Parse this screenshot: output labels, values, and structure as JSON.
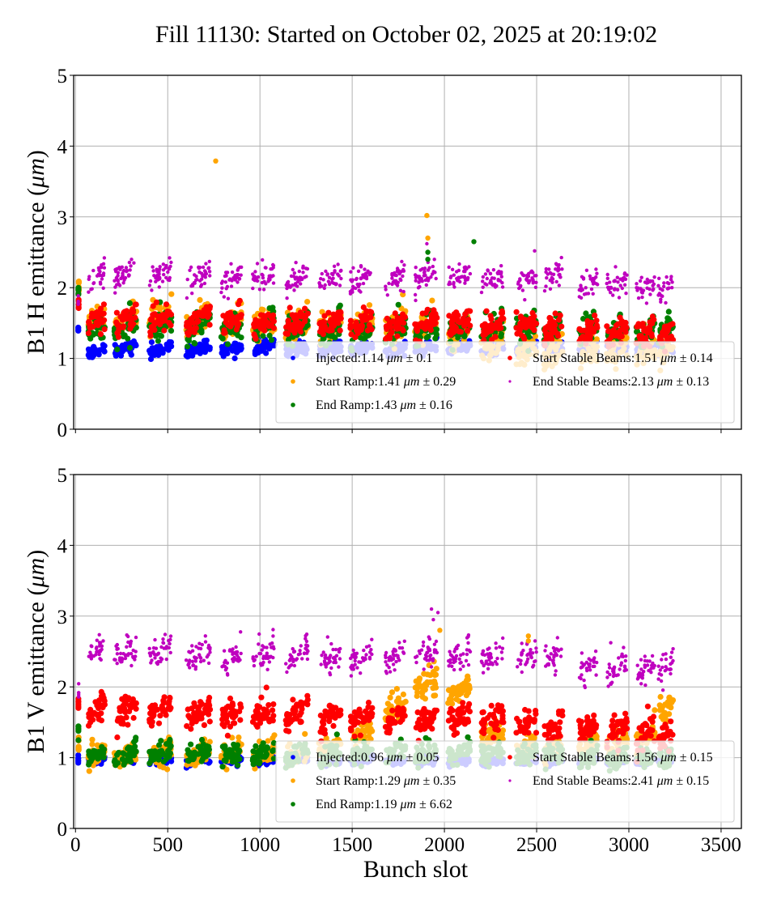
{
  "chart_data": [
    {
      "type": "scatter",
      "title": "Fill 11130: Started on October 02, 2025 at 20:19:02",
      "xlabel": "",
      "ylabel": "B1 H emittance (μm)",
      "ylabel_plain": "B1 H emittance (",
      "ylabel_unit": "μm",
      "ylabel_close": ")",
      "xlim": [
        -10,
        3610
      ],
      "ylim": [
        0,
        5
      ],
      "xticks": [
        0,
        500,
        1000,
        1500,
        2000,
        2500,
        3000,
        3500
      ],
      "xtick_labels_visible": false,
      "yticks": [
        0,
        1,
        2,
        3,
        4,
        5
      ],
      "grid": true,
      "legend_placement": "lower-right",
      "legend": [
        {
          "label": "Injected:1.14",
          "unit": "μm",
          "pm": "± 0.1",
          "color": "#0000ff"
        },
        {
          "label": "Start Ramp:1.41",
          "unit": "μm",
          "pm": "± 0.29",
          "color": "#ffa500"
        },
        {
          "label": "End Ramp:1.43",
          "unit": "μm",
          "pm": "± 0.16",
          "color": "#008000"
        },
        {
          "label": "Start Stable Beams:1.51",
          "unit": "μm",
          "pm": "± 0.14",
          "color": "#ff0000"
        },
        {
          "label": "End Stable Beams:2.13",
          "unit": "μm",
          "pm": "± 0.13",
          "color": "#bf00bf"
        }
      ],
      "trains_x": [
        [
          70,
          160
        ],
        [
          210,
          330
        ],
        [
          400,
          520
        ],
        [
          600,
          730
        ],
        [
          790,
          900
        ],
        [
          960,
          1080
        ],
        [
          1140,
          1260
        ],
        [
          1320,
          1440
        ],
        [
          1490,
          1610
        ],
        [
          1680,
          1790
        ],
        [
          1840,
          1960
        ],
        [
          2020,
          2140
        ],
        [
          2200,
          2320
        ],
        [
          2390,
          2500
        ],
        [
          2540,
          2640
        ],
        [
          2730,
          2830
        ],
        [
          2880,
          2990
        ],
        [
          3040,
          3140
        ],
        [
          3160,
          3240
        ]
      ],
      "series": [
        {
          "name": "Injected",
          "color": "#0000ff",
          "size": "large",
          "means": [
            1.12,
            1.14,
            1.14,
            1.13,
            1.12,
            1.17,
            1.15,
            1.14,
            1.14,
            1.14,
            1.15,
            1.15,
            1.15,
            1.14,
            1.14,
            1.16,
            1.14,
            1.14,
            1.14
          ],
          "spread": 0.06
        },
        {
          "name": "Start Ramp",
          "color": "#ffa500",
          "size": "large",
          "means": [
            1.55,
            1.55,
            1.6,
            1.55,
            1.5,
            1.5,
            1.5,
            1.45,
            1.45,
            1.45,
            1.45,
            1.35,
            1.25,
            1.1,
            1.1,
            1.1,
            1.1,
            1.1,
            1.1
          ],
          "spread": 0.15
        },
        {
          "name": "End Ramp",
          "color": "#008000",
          "size": "large",
          "means": [
            1.45,
            1.45,
            1.45,
            1.45,
            1.45,
            1.45,
            1.45,
            1.4,
            1.4,
            1.4,
            1.42,
            1.42,
            1.42,
            1.42,
            1.42,
            1.4,
            1.38,
            1.38,
            1.38
          ],
          "spread": 0.13
        },
        {
          "name": "Start Stable Beams",
          "color": "#ff0000",
          "size": "large",
          "means": [
            1.55,
            1.55,
            1.58,
            1.55,
            1.55,
            1.52,
            1.52,
            1.5,
            1.5,
            1.48,
            1.5,
            1.5,
            1.45,
            1.45,
            1.42,
            1.4,
            1.38,
            1.36,
            1.33
          ],
          "spread": 0.12
        },
        {
          "name": "End Stable Beams",
          "color": "#bf00bf",
          "size": "small",
          "means": [
            2.18,
            2.18,
            2.2,
            2.15,
            2.1,
            2.15,
            2.15,
            2.13,
            2.15,
            2.12,
            2.15,
            2.15,
            2.12,
            2.1,
            2.15,
            2.05,
            2.05,
            2.02,
            2.0
          ],
          "spread": 0.13
        }
      ],
      "start_bunches": [
        {
          "series": "Injected",
          "x": 15,
          "y": [
            1.38,
            1.45
          ]
        },
        {
          "series": "Start Ramp",
          "x": 18,
          "y": [
            1.95,
            2.1
          ]
        },
        {
          "series": "End Ramp",
          "x": 16,
          "y": [
            1.9,
            2.0
          ]
        },
        {
          "series": "Start Stable Beams",
          "x": 17,
          "y": [
            1.7,
            1.85
          ]
        },
        {
          "series": "End Stable Beams",
          "x": 15,
          "y": [
            1.75,
            1.9
          ]
        }
      ],
      "outliers": [
        {
          "series": "Start Ramp",
          "x": 760,
          "y": 3.79
        },
        {
          "series": "Start Ramp",
          "x": 1905,
          "y": 3.02
        },
        {
          "series": "Start Ramp",
          "x": 1910,
          "y": 2.7
        },
        {
          "series": "End Ramp",
          "x": 2160,
          "y": 2.65
        },
        {
          "series": "End Ramp",
          "x": 1910,
          "y": 2.5
        },
        {
          "series": "End Ramp",
          "x": 1910,
          "y": 2.4
        },
        {
          "series": "End Stable Beams",
          "x": 1905,
          "y": 2.62
        },
        {
          "series": "End Stable Beams",
          "x": 1912,
          "y": 2.1
        }
      ]
    },
    {
      "type": "scatter",
      "title": "",
      "xlabel": "Bunch slot",
      "ylabel": "B1 V emittance (μm)",
      "ylabel_plain": "B1 V emittance (",
      "ylabel_unit": "μm",
      "ylabel_close": ")",
      "xlim": [
        -10,
        3610
      ],
      "ylim": [
        0,
        5
      ],
      "xticks": [
        0,
        500,
        1000,
        1500,
        2000,
        2500,
        3000,
        3500
      ],
      "xtick_labels_visible": true,
      "yticks": [
        0,
        1,
        2,
        3,
        4,
        5
      ],
      "grid": true,
      "legend_placement": "lower-right",
      "legend": [
        {
          "label": "Injected:0.96",
          "unit": "μm",
          "pm": "± 0.05",
          "color": "#0000ff"
        },
        {
          "label": "Start Ramp:1.29",
          "unit": "μm",
          "pm": "± 0.35",
          "color": "#ffa500"
        },
        {
          "label": "End Ramp:1.19",
          "unit": "μm",
          "pm": "± 6.62",
          "color": "#008000"
        },
        {
          "label": "Start Stable Beams:1.56",
          "unit": "μm",
          "pm": "± 0.15",
          "color": "#ff0000"
        },
        {
          "label": "End Stable Beams:2.41",
          "unit": "μm",
          "pm": "± 0.15",
          "color": "#bf00bf"
        }
      ],
      "trains_x": [
        [
          70,
          160
        ],
        [
          210,
          330
        ],
        [
          400,
          520
        ],
        [
          600,
          730
        ],
        [
          790,
          900
        ],
        [
          960,
          1080
        ],
        [
          1140,
          1260
        ],
        [
          1320,
          1440
        ],
        [
          1490,
          1610
        ],
        [
          1680,
          1790
        ],
        [
          1840,
          1960
        ],
        [
          2020,
          2140
        ],
        [
          2200,
          2320
        ],
        [
          2390,
          2500
        ],
        [
          2540,
          2640
        ],
        [
          2730,
          2830
        ],
        [
          2880,
          2990
        ],
        [
          3040,
          3140
        ],
        [
          3160,
          3240
        ]
      ],
      "series": [
        {
          "name": "Injected",
          "color": "#0000ff",
          "size": "large",
          "means": [
            0.96,
            0.96,
            0.96,
            0.96,
            0.96,
            0.96,
            0.96,
            0.96,
            0.96,
            0.96,
            0.96,
            0.96,
            0.96,
            0.96,
            0.96,
            0.96,
            0.96,
            0.96,
            0.96
          ],
          "spread": 0.04
        },
        {
          "name": "Start Ramp",
          "color": "#ffa500",
          "size": "large",
          "means": [
            1.05,
            1.05,
            1.05,
            1.05,
            1.05,
            1.05,
            1.05,
            1.15,
            1.35,
            1.7,
            2.05,
            1.95,
            1.3,
            1.15,
            1.15,
            1.2,
            1.2,
            1.3,
            1.68
          ],
          "spread": 0.12
        },
        {
          "name": "End Ramp",
          "color": "#008000",
          "size": "large",
          "means": [
            1.05,
            1.05,
            1.05,
            1.05,
            1.05,
            1.05,
            1.05,
            1.05,
            1.08,
            1.08,
            1.08,
            1.08,
            1.08,
            1.05,
            1.05,
            1.0,
            1.0,
            1.0,
            1.0
          ],
          "spread": 0.1
        },
        {
          "name": "Start Stable Beams",
          "color": "#ff0000",
          "size": "large",
          "means": [
            1.68,
            1.68,
            1.68,
            1.62,
            1.62,
            1.6,
            1.6,
            1.55,
            1.55,
            1.55,
            1.55,
            1.55,
            1.5,
            1.48,
            1.42,
            1.4,
            1.38,
            1.35,
            1.3
          ],
          "spread": 0.13
        },
        {
          "name": "End Stable Beams",
          "color": "#bf00bf",
          "size": "small",
          "means": [
            2.55,
            2.5,
            2.5,
            2.45,
            2.4,
            2.45,
            2.45,
            2.4,
            2.42,
            2.42,
            2.45,
            2.45,
            2.42,
            2.4,
            2.42,
            2.3,
            2.28,
            2.25,
            2.3
          ],
          "spread": 0.14
        }
      ],
      "start_bunches": [
        {
          "series": "Injected",
          "x": 15,
          "y": [
            0.9,
            1.05
          ]
        },
        {
          "series": "Start Ramp",
          "x": 17,
          "y": [
            1.1,
            1.3
          ]
        },
        {
          "series": "End Ramp",
          "x": 16,
          "y": [
            1.2,
            1.45
          ]
        },
        {
          "series": "Start Stable Beams",
          "x": 16,
          "y": [
            1.7,
            1.85
          ]
        },
        {
          "series": "End Stable Beams",
          "x": 17,
          "y": [
            1.85,
            2.05
          ]
        }
      ],
      "outliers": [
        {
          "series": "End Stable Beams",
          "x": 1930,
          "y": 3.1
        },
        {
          "series": "End Stable Beams",
          "x": 1965,
          "y": 3.05
        },
        {
          "series": "End Stable Beams",
          "x": 1940,
          "y": 2.95
        },
        {
          "series": "Start Ramp",
          "x": 1975,
          "y": 2.8
        },
        {
          "series": "Start Ramp",
          "x": 2455,
          "y": 2.72
        },
        {
          "series": "Start Ramp",
          "x": 2455,
          "y": 2.65
        }
      ]
    }
  ],
  "figure": {
    "title": "Fill 11130: Started on October 02, 2025 at 20:19:02"
  }
}
